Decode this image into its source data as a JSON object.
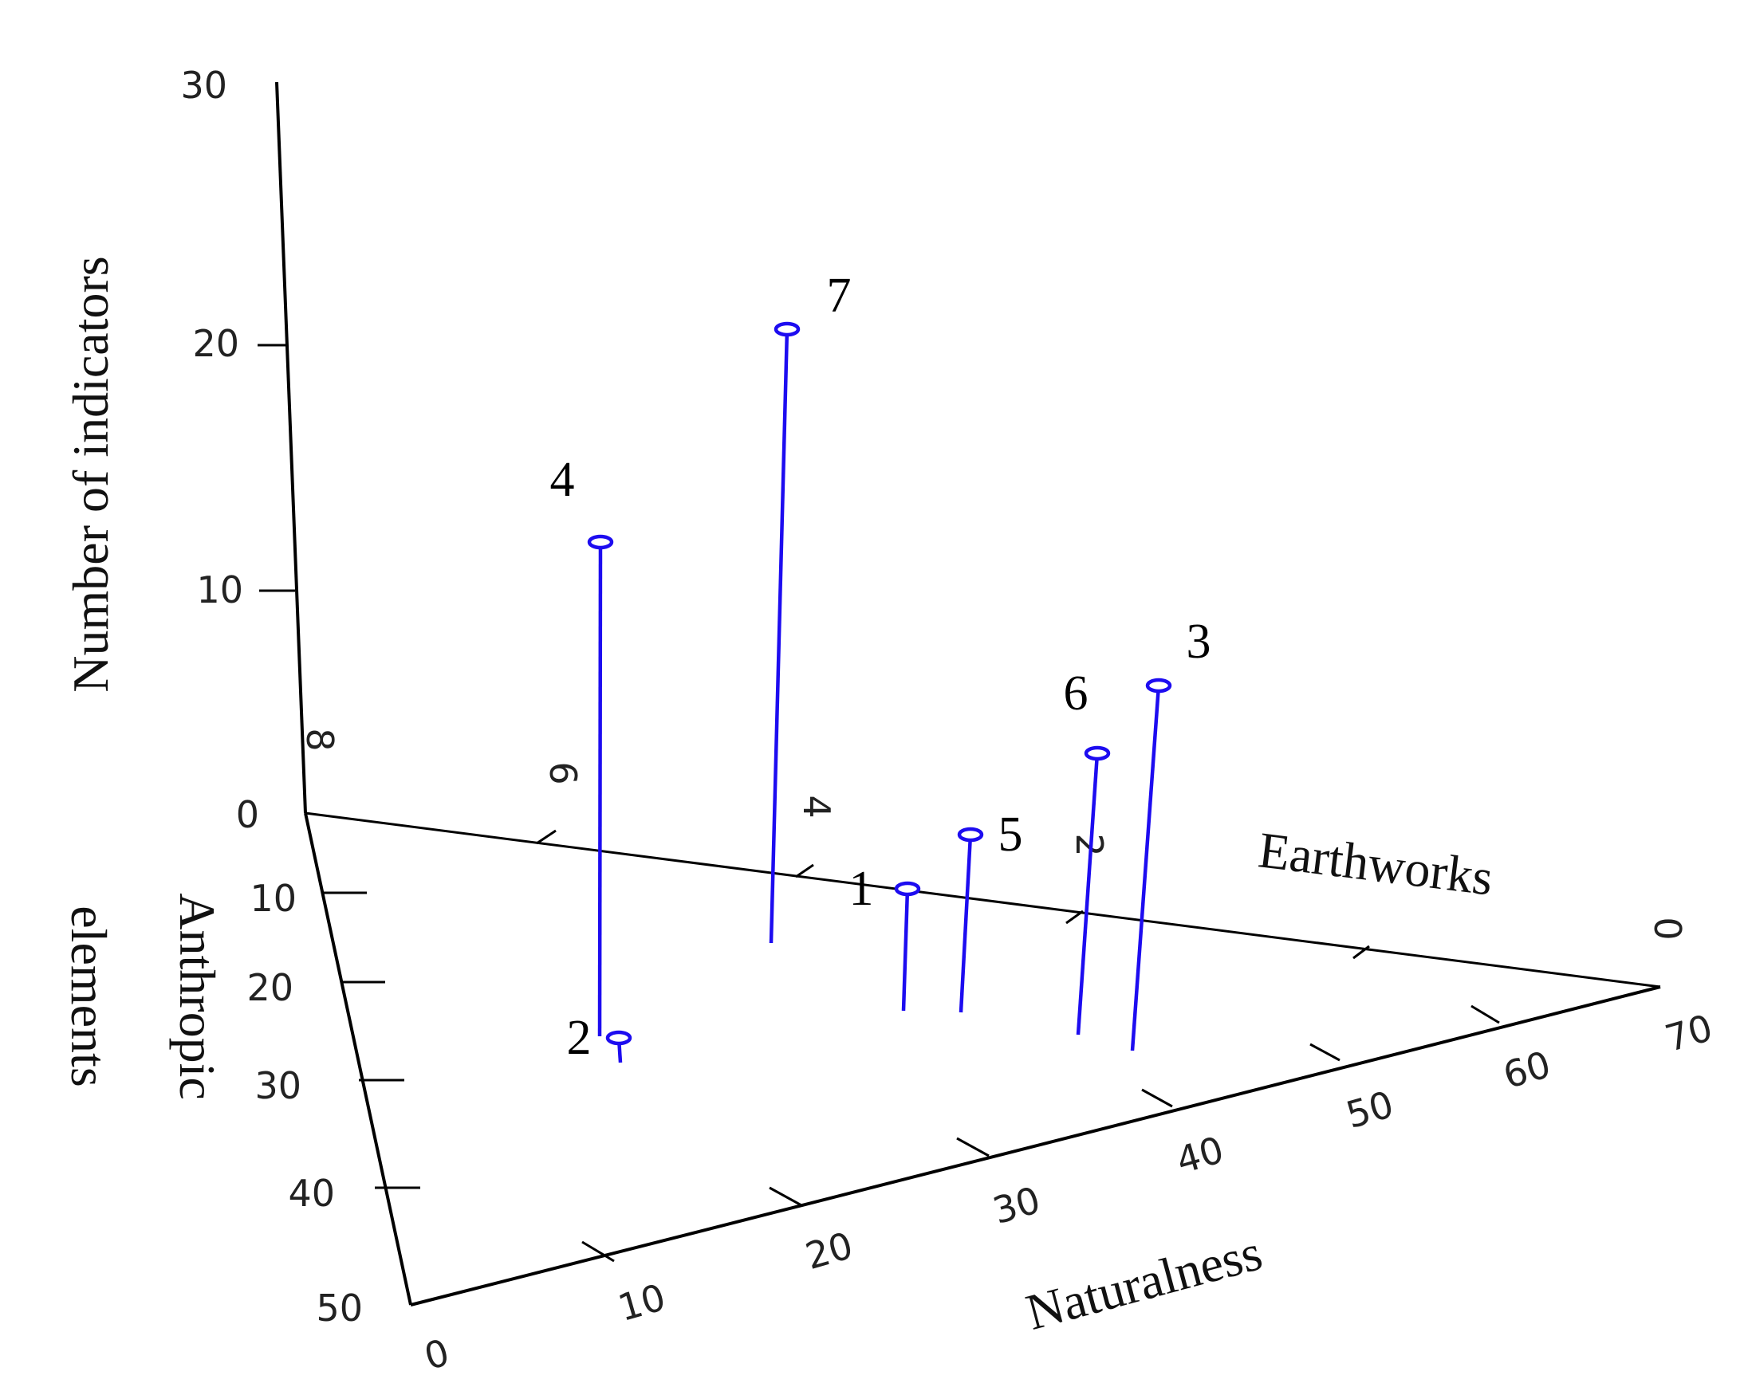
{
  "chart_data": {
    "type": "scatter",
    "projection": "3d",
    "axes": {
      "x": {
        "label": "Naturalness",
        "ticks": [
          "0",
          "10",
          "20",
          "30",
          "40",
          "50",
          "60",
          "70"
        ]
      },
      "y": {
        "label": "Earthworks",
        "ticks": [
          "0",
          "2",
          "4",
          "6",
          "8"
        ]
      },
      "z": {
        "label": "Number of indicators",
        "ticks": [
          "0",
          "10",
          "20",
          "30"
        ]
      },
      "w": {
        "label_lines": [
          "Anthropic",
          "elements"
        ],
        "ticks": [
          "10",
          "20",
          "30",
          "40",
          "50"
        ]
      }
    },
    "points": [
      {
        "label": "1",
        "z": 4
      },
      {
        "label": "2",
        "z": 1
      },
      {
        "label": "3",
        "z": 12
      },
      {
        "label": "4",
        "z": 19
      },
      {
        "label": "5",
        "z": 6
      },
      {
        "label": "6",
        "z": 9
      },
      {
        "label": "7",
        "z": 25
      }
    ],
    "style": {
      "marker_color": "#1d0cf0",
      "axis_color": "#000000",
      "grid": false,
      "legend": "none"
    }
  }
}
